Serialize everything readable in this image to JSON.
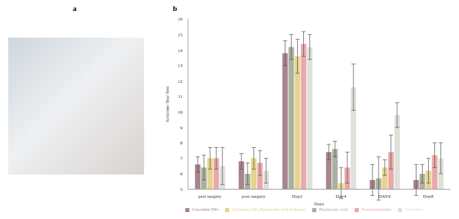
{
  "panel_labels": [
    "a",
    "b"
  ],
  "chart_data": {
    "type": "bar",
    "x_label": "Days",
    "y_label": "Schirmer Tear Test",
    "categories": [
      "peri surgery",
      "post surgery",
      "Day2",
      "Day4",
      "DAY6",
      "Day8"
    ],
    "ylim": [
      5,
      16
    ],
    "yticks": [
      5,
      6,
      7,
      8,
      9,
      10,
      11,
      12,
      13,
      14,
      15,
      16
    ],
    "grid": false,
    "legend": "bottom",
    "series": [
      {
        "name": "Curcumin NPs",
        "color": "#a8858f",
        "values": [
          6.6,
          6.8,
          13.8,
          7.4,
          5.6,
          5.6
        ],
        "errors": [
          0.5,
          0.5,
          0.8,
          0.5,
          1.0,
          1.0
        ]
      },
      {
        "name": "Hyaluronic acid",
        "color": "#a9b09f",
        "values": [
          6.4,
          6.0,
          14.2,
          7.6,
          5.7,
          6.0
        ],
        "errors": [
          0.8,
          0.7,
          0.8,
          0.5,
          1.4,
          0.6
        ]
      },
      {
        "name": "Curcumin NPs Hyaluronic acid hydrogel",
        "color": "#e6d38c",
        "values": [
          7.0,
          7.0,
          13.6,
          5.4,
          6.4,
          6.2
        ],
        "errors": [
          0.7,
          0.7,
          1.1,
          1.0,
          0.5,
          0.8
        ]
      },
      {
        "name": "N-acetylcysteine",
        "color": "#e9a9a9",
        "values": [
          7.0,
          6.7,
          14.4,
          6.4,
          7.4,
          7.2
        ],
        "errors": [
          0.7,
          0.8,
          0.8,
          1.0,
          1.1,
          0.8
        ]
      },
      {
        "name": "Untreated",
        "color": "#e0e0da",
        "values": [
          6.5,
          6.2,
          14.2,
          11.6,
          9.8,
          7.0
        ],
        "errors": [
          1.2,
          0.8,
          0.8,
          1.5,
          0.8,
          1.0
        ]
      }
    ]
  }
}
